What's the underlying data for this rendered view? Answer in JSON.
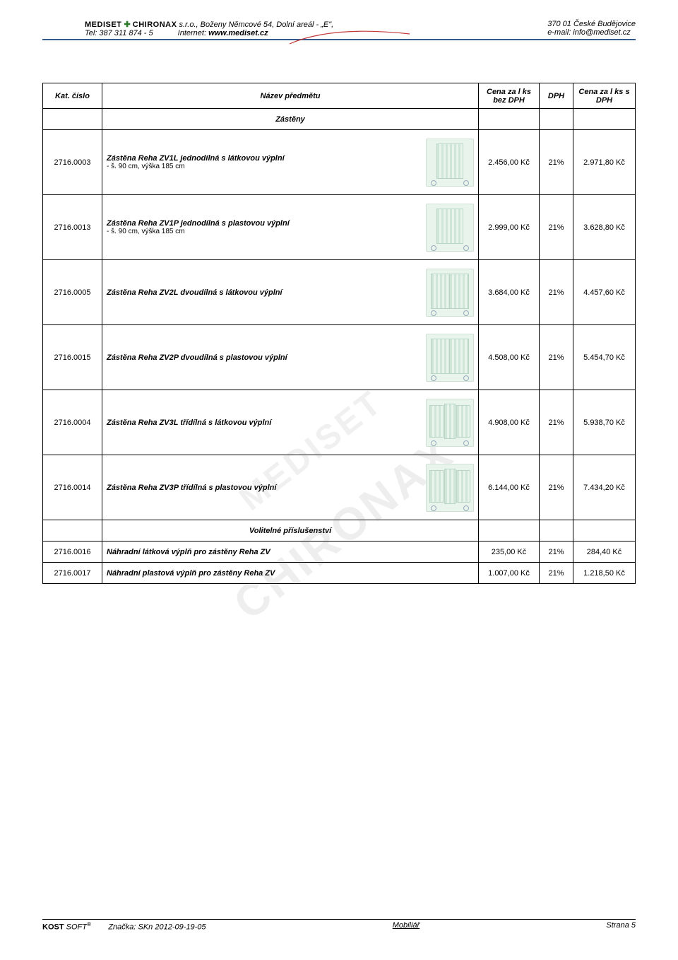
{
  "header": {
    "company_bold": "MEDISET",
    "company_plus": "✚",
    "company_bold2": "CHIRONAX",
    "company_suffix": "s.r.o., Boženy Němcové 54, Dolní areál - „E\",",
    "city": "370 01 České Budějovice",
    "tel_label": "Tel: 387 311 874 - 5",
    "internet_label": "Internet:",
    "internet_value": "www.mediset.cz",
    "email_label": "e-mail: info@mediset.cz"
  },
  "columns": {
    "code": "Kat. číslo",
    "name": "Název předmětu",
    "price_ex": "Cena za l ks bez DPH",
    "vat": "DPH",
    "price_inc": "Cena za l ks s DPH"
  },
  "section1_label": "Zástěny",
  "products": [
    {
      "code": "2716.0003",
      "name": "Zástěna Reha ZV1L jednodílná s látkovou výplní",
      "sub": "- š. 90 cm, výška 185 cm",
      "thumb": "single",
      "price_ex": "2.456,00 Kč",
      "vat": "21%",
      "price_inc": "2.971,80 Kč"
    },
    {
      "code": "2716.0013",
      "name": "Zástěna Reha ZV1P jednodílná s plastovou výplní",
      "sub": "- š. 90 cm, výška 185 cm",
      "thumb": "single",
      "price_ex": "2.999,00 Kč",
      "vat": "21%",
      "price_inc": "3.628,80 Kč"
    },
    {
      "code": "2716.0005",
      "name": "Zástěna Reha ZV2L dvoudílná s látkovou výplní",
      "sub": "",
      "thumb": "double",
      "price_ex": "3.684,00 Kč",
      "vat": "21%",
      "price_inc": "4.457,60 Kč"
    },
    {
      "code": "2716.0015",
      "name": "Zástěna Reha ZV2P dvoudílná s plastovou výplní",
      "sub": "",
      "thumb": "double",
      "price_ex": "4.508,00 Kč",
      "vat": "21%",
      "price_inc": "5.454,70 Kč"
    },
    {
      "code": "2716.0004",
      "name": "Zástěna Reha ZV3L třídílná s látkovou výplní",
      "sub": "",
      "thumb": "triple",
      "price_ex": "4.908,00 Kč",
      "vat": "21%",
      "price_inc": "5.938,70 Kč"
    },
    {
      "code": "2716.0014",
      "name": "Zástěna Reha ZV3P třídílná s plastovou výplní",
      "sub": "",
      "thumb": "triple",
      "price_ex": "6.144,00 Kč",
      "vat": "21%",
      "price_inc": "7.434,20 Kč"
    }
  ],
  "section2_label": "Volitelné příslušenství",
  "accessories": [
    {
      "code": "2716.0016",
      "name": "Náhradní látková výplň pro zástěny Reha ZV",
      "price_ex": "235,00 Kč",
      "vat": "21%",
      "price_inc": "284,40 Kč"
    },
    {
      "code": "2716.0017",
      "name": "Náhradní plastová výplň pro zástěny Reha ZV",
      "price_ex": "1.007,00 Kč",
      "vat": "21%",
      "price_inc": "1.218,50 Kč"
    }
  ],
  "footer": {
    "brand_bold": "KOST",
    "brand_light": " SOFT",
    "reg": "®",
    "mark_label": "Značka: SKn 2012-09-19-05",
    "center": "Mobiliář",
    "page": "Strana 5"
  },
  "colors": {
    "header_rule": "#335a8a",
    "swoosh": "#c23a3a",
    "watermark": "#777777"
  }
}
